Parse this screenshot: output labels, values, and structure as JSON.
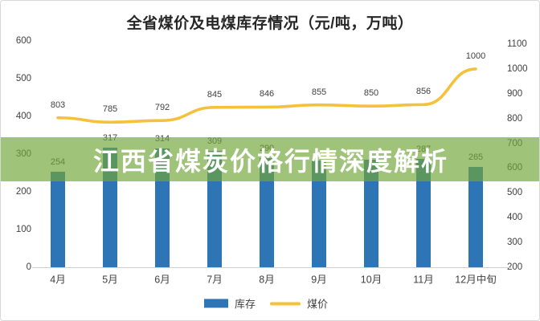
{
  "title": "全省煤价及电煤库存情况（元/吨，万吨）",
  "banner": {
    "text": "江西省煤炭价格行情深度解析"
  },
  "colors": {
    "bar": "#2E75B6",
    "line": "#F5C13A",
    "banner_bg": "rgba(113,167,56,0.68)",
    "banner_text": "#FFFFFF",
    "axis_text": "#404040",
    "title_text": "#262626",
    "axis_line": "#CFCFCF"
  },
  "chart_data": {
    "type": "bar+line combo",
    "title": "全省煤价及电煤库存情况（元/吨，万吨）",
    "categories": [
      "4月",
      "5月",
      "6月",
      "7月",
      "8月",
      "9月",
      "10月",
      "11月",
      "12月中旬"
    ],
    "series": [
      {
        "name": "库存",
        "type": "bar",
        "axis": "left",
        "values": [
          254,
          317,
          314,
          309,
          290,
          283,
          285,
          287,
          265
        ],
        "labels": [
          "254",
          "317",
          "314",
          "309",
          "290",
          "",
          "",
          "287",
          "265"
        ]
      },
      {
        "name": "煤价",
        "type": "line",
        "axis": "right",
        "values": [
          803,
          785,
          792,
          845,
          846,
          855,
          850,
          856,
          1000
        ],
        "labels": [
          "803",
          "785",
          "792",
          "845",
          "846",
          "855",
          "850",
          "856",
          "1000"
        ]
      }
    ],
    "left_axis": {
      "ticks": [
        600,
        500,
        400,
        300,
        200,
        100,
        0
      ],
      "range": [
        0,
        600
      ]
    },
    "right_axis": {
      "ticks": [
        1100,
        1000,
        900,
        800,
        700,
        600,
        500,
        400,
        300,
        200
      ],
      "range": [
        200,
        1100
      ]
    },
    "grid": "off",
    "legend_position": "bottom"
  }
}
